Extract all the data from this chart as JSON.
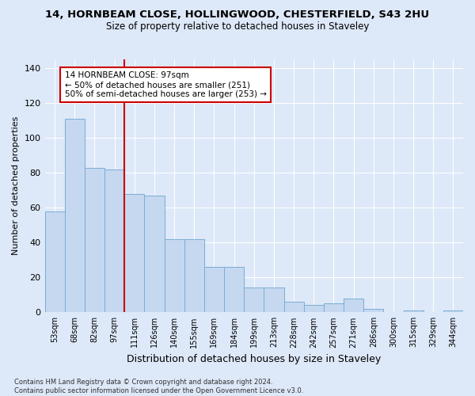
{
  "title": "14, HORNBEAM CLOSE, HOLLINGWOOD, CHESTERFIELD, S43 2HU",
  "subtitle": "Size of property relative to detached houses in Staveley",
  "xlabel": "Distribution of detached houses by size in Staveley",
  "ylabel": "Number of detached properties",
  "categories": [
    "53sqm",
    "68sqm",
    "82sqm",
    "97sqm",
    "111sqm",
    "126sqm",
    "140sqm",
    "155sqm",
    "169sqm",
    "184sqm",
    "199sqm",
    "213sqm",
    "228sqm",
    "242sqm",
    "257sqm",
    "271sqm",
    "286sqm",
    "300sqm",
    "315sqm",
    "329sqm",
    "344sqm"
  ],
  "values": [
    58,
    111,
    83,
    82,
    68,
    67,
    42,
    42,
    26,
    26,
    14,
    14,
    6,
    4,
    5,
    8,
    2,
    0,
    1,
    0,
    1
  ],
  "bar_color": "#c5d8f0",
  "bar_edge_color": "#7aadd4",
  "vline_color": "#cc0000",
  "annotation_text": "14 HORNBEAM CLOSE: 97sqm\n← 50% of detached houses are smaller (251)\n50% of semi-detached houses are larger (253) →",
  "annotation_box_color": "#ffffff",
  "annotation_box_edge": "#cc0000",
  "ylim": [
    0,
    145
  ],
  "yticks": [
    0,
    20,
    40,
    60,
    80,
    100,
    120,
    140
  ],
  "footnote": "Contains HM Land Registry data © Crown copyright and database right 2024.\nContains public sector information licensed under the Open Government Licence v3.0.",
  "bg_color": "#dde8f8",
  "plot_bg": "#dde8f8",
  "grid_color": "#ffffff"
}
